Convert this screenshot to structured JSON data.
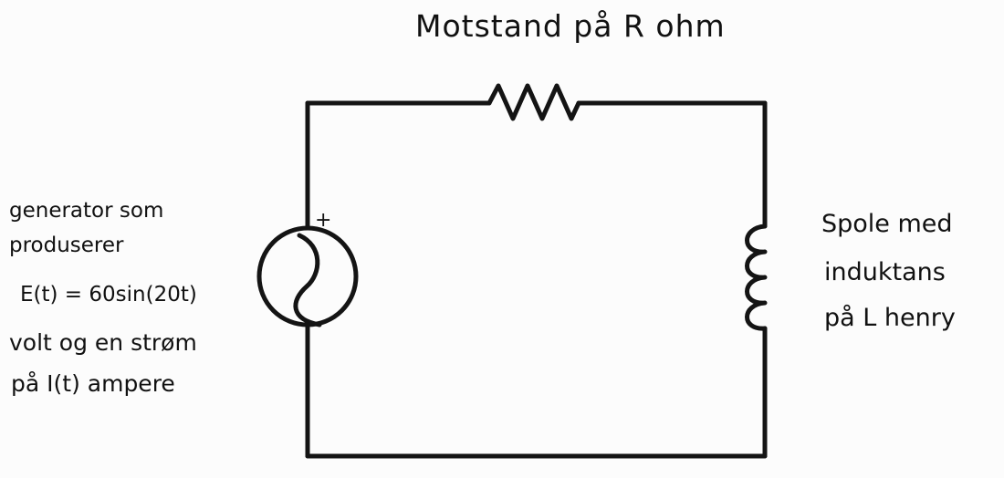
{
  "labels": {
    "resistor": "Motstand på R ohm",
    "generator": {
      "line1": "generator som",
      "line2": "produserer",
      "line3": "E(t) = 60sin(20t)",
      "line4": "volt  og en strøm",
      "line5": "på  I(t) ampere"
    },
    "inductor": {
      "line1": "Spole med",
      "line2": "induktans",
      "line3": "på L  henry"
    },
    "polarity": "+"
  },
  "colors": {
    "wire": "#141414",
    "background": "#fcfcfc"
  }
}
